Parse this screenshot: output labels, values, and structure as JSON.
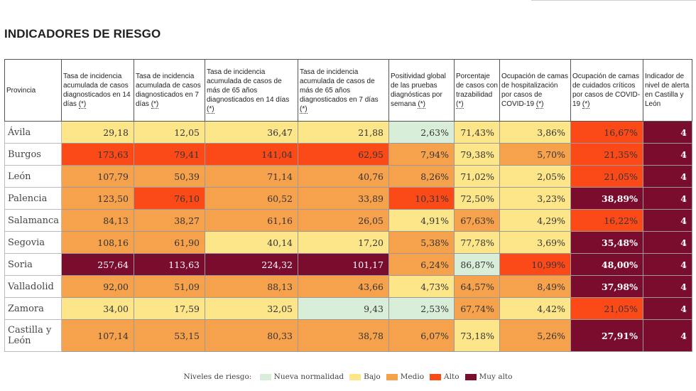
{
  "title": "INDICADORES DE RIESGO",
  "headers": [
    {
      "text": "Provincia",
      "star": ""
    },
    {
      "text": "Tasa de incidencia acumulada de casos diagnosticados en 14 días ",
      "star": "(*)"
    },
    {
      "text": "Tasa de incidencia acumulada de casos diagnosticados en 7 días ",
      "star": "(*)"
    },
    {
      "text": "Tasa de incidencia acumulada de casos de más de 65 años diagnosticados en 14 días ",
      "star": "(*)"
    },
    {
      "text": "Tasa de incidencia acumulada de casos de más de 65 años diagnosticados en 7 días ",
      "star": "(*)"
    },
    {
      "text": "Positividad global de las pruebas diagnósticas por semana ",
      "star": "(*)"
    },
    {
      "text": "Porcentaje de casos con trazabilidad ",
      "star": "(*)"
    },
    {
      "text": "Ocupación de camas de hospitalización por casos de COVID-19 ",
      "star": "(*)"
    },
    {
      "text": "Ocupación de camas de cuidados críticos por casos de COVID-19 ",
      "star": "(*)"
    },
    {
      "text": "Indicador de nivel de alerta en Castilla y León",
      "star": ""
    }
  ],
  "rows": [
    {
      "province": "Ávila",
      "cells": [
        {
          "v": "29,18",
          "lvl": "bajo"
        },
        {
          "v": "12,05",
          "lvl": "bajo"
        },
        {
          "v": "36,47",
          "lvl": "bajo"
        },
        {
          "v": "21,88",
          "lvl": "bajo"
        },
        {
          "v": "2,63%",
          "lvl": "nueva"
        },
        {
          "v": "71,43%",
          "lvl": "bajo"
        },
        {
          "v": "3,86%",
          "lvl": "bajo"
        },
        {
          "v": "16,67%",
          "lvl": "alto"
        },
        {
          "v": "4",
          "lvl": "muyalto"
        }
      ]
    },
    {
      "province": "Burgos",
      "cells": [
        {
          "v": "173,63",
          "lvl": "alto"
        },
        {
          "v": "79,41",
          "lvl": "alto"
        },
        {
          "v": "141,04",
          "lvl": "alto"
        },
        {
          "v": "62,95",
          "lvl": "alto"
        },
        {
          "v": "7,94%",
          "lvl": "medio"
        },
        {
          "v": "79,38%",
          "lvl": "bajo"
        },
        {
          "v": "5,70%",
          "lvl": "medio"
        },
        {
          "v": "21,35%",
          "lvl": "alto"
        },
        {
          "v": "4",
          "lvl": "muyalto"
        }
      ]
    },
    {
      "province": "León",
      "cells": [
        {
          "v": "107,79",
          "lvl": "medio"
        },
        {
          "v": "50,39",
          "lvl": "medio"
        },
        {
          "v": "71,14",
          "lvl": "medio"
        },
        {
          "v": "40,76",
          "lvl": "medio"
        },
        {
          "v": "8,26%",
          "lvl": "medio"
        },
        {
          "v": "71,02%",
          "lvl": "bajo"
        },
        {
          "v": "2,05%",
          "lvl": "bajo"
        },
        {
          "v": "21,05%",
          "lvl": "alto"
        },
        {
          "v": "4",
          "lvl": "muyalto"
        }
      ]
    },
    {
      "province": "Palencia",
      "cells": [
        {
          "v": "123,50",
          "lvl": "medio"
        },
        {
          "v": "76,10",
          "lvl": "alto"
        },
        {
          "v": "60,52",
          "lvl": "medio"
        },
        {
          "v": "33,89",
          "lvl": "medio"
        },
        {
          "v": "10,31%",
          "lvl": "alto"
        },
        {
          "v": "72,50%",
          "lvl": "bajo"
        },
        {
          "v": "3,23%",
          "lvl": "bajo"
        },
        {
          "v": "38,89%",
          "lvl": "muyalto"
        },
        {
          "v": "4",
          "lvl": "muyalto"
        }
      ]
    },
    {
      "province": "Salamanca",
      "cells": [
        {
          "v": "84,13",
          "lvl": "medio"
        },
        {
          "v": "38,27",
          "lvl": "medio"
        },
        {
          "v": "61,16",
          "lvl": "medio"
        },
        {
          "v": "26,05",
          "lvl": "medio"
        },
        {
          "v": "4,91%",
          "lvl": "bajo"
        },
        {
          "v": "67,63%",
          "lvl": "medio"
        },
        {
          "v": "4,29%",
          "lvl": "bajo"
        },
        {
          "v": "16,22%",
          "lvl": "alto"
        },
        {
          "v": "4",
          "lvl": "muyalto"
        }
      ]
    },
    {
      "province": "Segovia",
      "cells": [
        {
          "v": "108,16",
          "lvl": "medio"
        },
        {
          "v": "61,90",
          "lvl": "medio"
        },
        {
          "v": "40,14",
          "lvl": "bajo"
        },
        {
          "v": "17,20",
          "lvl": "bajo"
        },
        {
          "v": "5,38%",
          "lvl": "medio"
        },
        {
          "v": "77,78%",
          "lvl": "bajo"
        },
        {
          "v": "3,69%",
          "lvl": "bajo"
        },
        {
          "v": "35,48%",
          "lvl": "muyalto"
        },
        {
          "v": "4",
          "lvl": "muyalto"
        }
      ]
    },
    {
      "province": "Soria",
      "cells": [
        {
          "v": "257,64",
          "lvl": "muyalto"
        },
        {
          "v": "113,63",
          "lvl": "muyalto"
        },
        {
          "v": "224,32",
          "lvl": "muyalto"
        },
        {
          "v": "101,17",
          "lvl": "muyalto"
        },
        {
          "v": "6,24%",
          "lvl": "medio"
        },
        {
          "v": "86,87%",
          "lvl": "nueva"
        },
        {
          "v": "10,99%",
          "lvl": "alto"
        },
        {
          "v": "48,00%",
          "lvl": "muyalto"
        },
        {
          "v": "4",
          "lvl": "muyalto"
        }
      ]
    },
    {
      "province": "Valladolid",
      "cells": [
        {
          "v": "92,00",
          "lvl": "medio"
        },
        {
          "v": "51,09",
          "lvl": "medio"
        },
        {
          "v": "88,13",
          "lvl": "medio"
        },
        {
          "v": "43,66",
          "lvl": "medio"
        },
        {
          "v": "4,73%",
          "lvl": "bajo"
        },
        {
          "v": "64,57%",
          "lvl": "medio"
        },
        {
          "v": "8,49%",
          "lvl": "medio"
        },
        {
          "v": "37,98%",
          "lvl": "muyalto"
        },
        {
          "v": "4",
          "lvl": "muyalto"
        }
      ]
    },
    {
      "province": "Zamora",
      "cells": [
        {
          "v": "34,00",
          "lvl": "bajo"
        },
        {
          "v": "17,59",
          "lvl": "bajo"
        },
        {
          "v": "32,05",
          "lvl": "bajo"
        },
        {
          "v": "9,43",
          "lvl": "nueva"
        },
        {
          "v": "2,53%",
          "lvl": "nueva"
        },
        {
          "v": "67,74%",
          "lvl": "medio"
        },
        {
          "v": "4,42%",
          "lvl": "bajo"
        },
        {
          "v": "21,05%",
          "lvl": "alto"
        },
        {
          "v": "4",
          "lvl": "muyalto"
        }
      ]
    },
    {
      "province": "Castilla y León",
      "cells": [
        {
          "v": "107,14",
          "lvl": "medio"
        },
        {
          "v": "53,15",
          "lvl": "medio"
        },
        {
          "v": "80,33",
          "lvl": "medio"
        },
        {
          "v": "38,78",
          "lvl": "medio"
        },
        {
          "v": "6,07%",
          "lvl": "medio"
        },
        {
          "v": "73,18%",
          "lvl": "bajo"
        },
        {
          "v": "5,26%",
          "lvl": "medio"
        },
        {
          "v": "27,91%",
          "lvl": "muyalto"
        },
        {
          "v": "4",
          "lvl": "muyalto"
        }
      ]
    }
  ],
  "legend": {
    "label": "Niveles de riesgo:",
    "items": [
      {
        "name": "Nueva normalidad",
        "color": "#d9eed9"
      },
      {
        "name": "Bajo",
        "color": "#fde68a"
      },
      {
        "name": "Medio",
        "color": "#f6a24c"
      },
      {
        "name": "Alto",
        "color": "#fb4a17"
      },
      {
        "name": "Muy alto",
        "color": "#7a0c2e"
      }
    ]
  }
}
